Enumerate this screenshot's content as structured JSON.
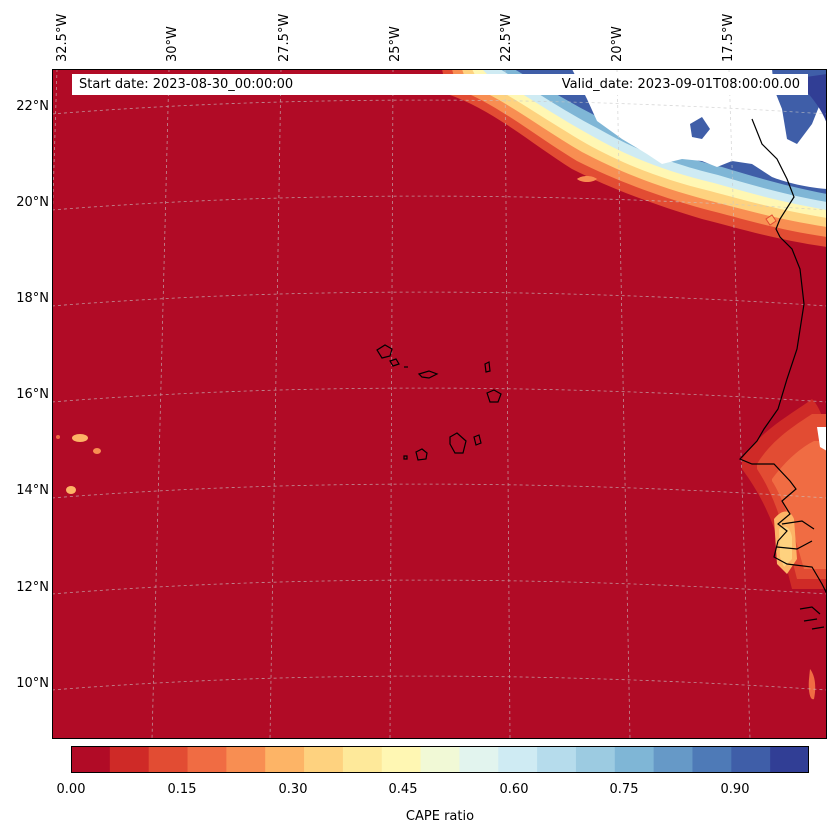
{
  "map": {
    "start_label": "Start date: 2023-08-30_00:00:00",
    "valid_label": "Valid_date: 2023-09-01T08:00:00.00",
    "lon_labels": [
      "32.5°W",
      "30°W",
      "27.5°W",
      "25°W",
      "22.5°W",
      "20°W",
      "17.5°W"
    ],
    "lat_labels": [
      "22°N",
      "20°N",
      "18°N",
      "16°N",
      "14°N",
      "12°N",
      "10°N"
    ],
    "colors": {
      "background_field": "#b10b26",
      "coastline": "#000000",
      "gridline": "#c8c8c8"
    }
  },
  "colorbar": {
    "label": "CAPE ratio",
    "ticks": [
      "0.00",
      "0.15",
      "0.30",
      "0.45",
      "0.60",
      "0.75",
      "0.90"
    ],
    "colors": [
      "#b10b26",
      "#cf2a27",
      "#e24c33",
      "#f06c43",
      "#f88e52",
      "#fdb466",
      "#fed27f",
      "#fee99a",
      "#fff7b3",
      "#f1f9d6",
      "#e2f4ee",
      "#cfebf3",
      "#b6dcec",
      "#9ccbe1",
      "#7fb6d6",
      "#6699c7",
      "#4e7ab7",
      "#3f5ea8",
      "#313e95"
    ]
  }
}
